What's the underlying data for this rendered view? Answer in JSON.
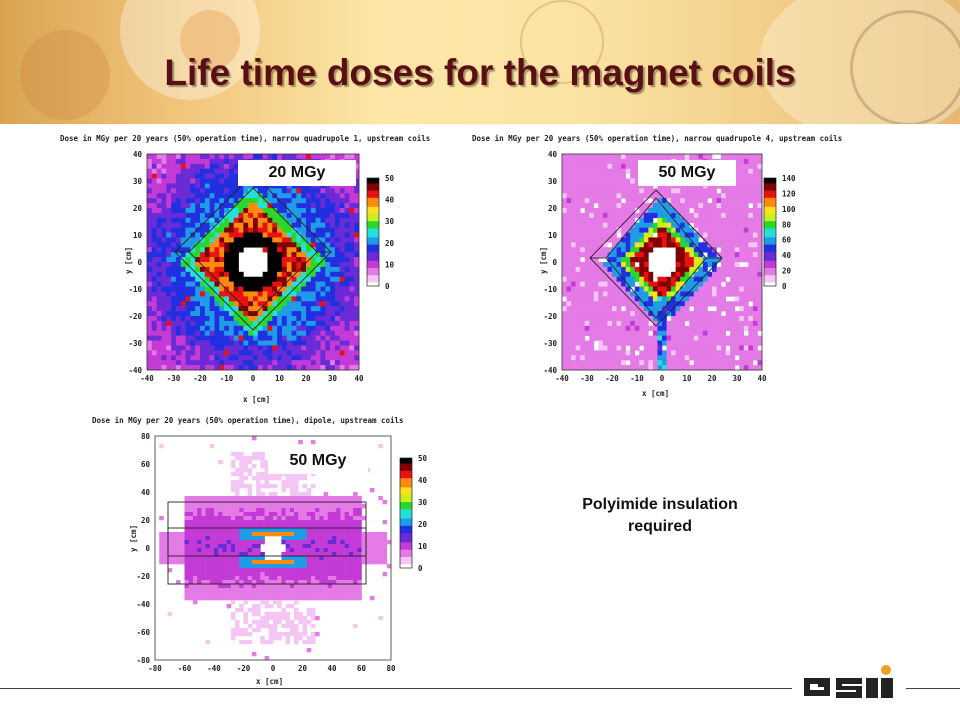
{
  "slide": {
    "title": "Life time doses for the magnet coils",
    "note_line1": "Polyimide insulation",
    "note_line2": "required",
    "logo_text": "GSI"
  },
  "plots": [
    {
      "id": "q1",
      "title": "Dose in MGy per 20 years (50% operation time), narrow quadrupole 1, upstream coils",
      "callout": "20 MGy",
      "xlabel": "x [cm]",
      "ylabel": "y [cm]",
      "x_ticks": [
        "-40",
        "-30",
        "-20",
        "-10",
        "0",
        "10",
        "20",
        "30",
        "40"
      ],
      "y_ticks": [
        "40",
        "30",
        "20",
        "10",
        "0",
        "-10",
        "-20",
        "-30",
        "-40"
      ],
      "colorbar_ticks": [
        "50",
        "40",
        "30",
        "20",
        "10",
        "0"
      ]
    },
    {
      "id": "q4",
      "title": "Dose in MGy per 20 years (50% operation time), narrow quadrupole 4, upstream coils",
      "callout": "50 MGy",
      "xlabel": "x [cm]",
      "ylabel": "y [cm]",
      "x_ticks": [
        "-40",
        "-30",
        "-20",
        "-10",
        "0",
        "10",
        "20",
        "30",
        "40"
      ],
      "y_ticks": [
        "40",
        "30",
        "20",
        "10",
        "0",
        "-10",
        "-20",
        "-30",
        "-40"
      ],
      "colorbar_ticks": [
        "140",
        "120",
        "100",
        "80",
        "60",
        "40",
        "20",
        "0"
      ]
    },
    {
      "id": "dipole",
      "title": "Dose in MGy per 20 years (50% operation time), dipole, upstream coils",
      "callout": "50 MGy",
      "xlabel": "x [cm]",
      "ylabel": "y [cm]",
      "x_ticks": [
        "-80",
        "-60",
        "-40",
        "-20",
        "0",
        "20",
        "40",
        "60",
        "80"
      ],
      "y_ticks": [
        "80",
        "60",
        "40",
        "20",
        "0",
        "-20",
        "-40",
        "-60",
        "-80"
      ],
      "colorbar_ticks": [
        "50",
        "40",
        "30",
        "20",
        "10",
        "0"
      ]
    }
  ],
  "colors": {
    "title": "#5a0f12",
    "colormap": [
      "#ffffff",
      "#f3c6f3",
      "#e47ae6",
      "#c43ad6",
      "#6a2ad6",
      "#2030e0",
      "#1f9be8",
      "#25e0d6",
      "#2ad82a",
      "#c8f020",
      "#ffe020",
      "#ff8a10",
      "#e81010",
      "#800000",
      "#000000"
    ]
  }
}
